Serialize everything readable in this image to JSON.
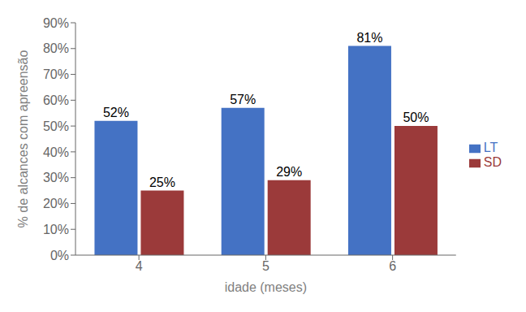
{
  "chart_data": {
    "type": "bar",
    "xlabel": "idade (meses)",
    "ylabel": "% de alcances com apreensão",
    "categories": [
      "4",
      "5",
      "6"
    ],
    "series": [
      {
        "name": "LT",
        "color": "#4472C4",
        "values": [
          0.52,
          0.57,
          0.81
        ],
        "value_labels": [
          "52%",
          "57%",
          "81%"
        ]
      },
      {
        "name": "SD",
        "color": "#9B3A3A",
        "values": [
          0.25,
          0.29,
          0.5
        ],
        "value_labels": [
          "25%",
          "29%",
          "50%"
        ]
      }
    ],
    "ylim": [
      0,
      0.9
    ],
    "yticks": [
      {
        "value": 0.0,
        "label": "0%"
      },
      {
        "value": 0.1,
        "label": "10%"
      },
      {
        "value": 0.2,
        "label": "20%"
      },
      {
        "value": 0.3,
        "label": "30%"
      },
      {
        "value": 0.4,
        "label": "40%"
      },
      {
        "value": 0.5,
        "label": "50%"
      },
      {
        "value": 0.6,
        "label": "60%"
      },
      {
        "value": 0.7,
        "label": "70%"
      },
      {
        "value": 0.8,
        "label": "80%"
      },
      {
        "value": 0.9,
        "label": "90%"
      }
    ],
    "grid": false,
    "legend": "right"
  }
}
